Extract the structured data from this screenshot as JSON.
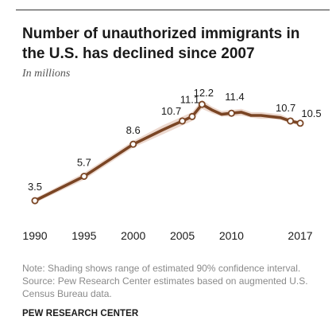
{
  "title": "Number of unauthorized immigrants in the U.S. has declined since 2007",
  "subtitle": "In millions",
  "note": "Note: Shading shows range of estimated 90% confidence interval.",
  "source": "Source: Pew Research Center estimates based on augmented U.S. Census Bureau data.",
  "brand": "PEW RESEARCH CENTER",
  "colors": {
    "line": "#7a4524",
    "band": "#e6cbbd",
    "marker_fill": "#ffffff",
    "text": "#1a1a1a",
    "note_text": "#8a8a8a"
  },
  "chart_data": {
    "type": "line",
    "title": "Number of unauthorized immigrants in the U.S. has declined since 2007",
    "subtitle": "In millions",
    "xlabel": "",
    "ylabel": "",
    "x_ticks": [
      1990,
      1995,
      2000,
      2005,
      2010,
      2017
    ],
    "xlim": [
      1990,
      2017
    ],
    "ylim": [
      2.5,
      13
    ],
    "grid": false,
    "legend": "none",
    "series": [
      {
        "x": [
          1990,
          1995,
          2000,
          2003,
          2004,
          2005,
          2006,
          2007,
          2008,
          2009,
          2010,
          2011,
          2012,
          2013,
          2014,
          2015,
          2016,
          2017
        ],
        "y": [
          3.5,
          5.7,
          8.6,
          9.9,
          10.3,
          10.7,
          11.1,
          12.2,
          11.7,
          11.3,
          11.4,
          11.5,
          11.2,
          11.2,
          11.1,
          11.0,
          10.7,
          10.5
        ],
        "lower": [
          3.3,
          5.4,
          8.3,
          9.5,
          9.9,
          10.3,
          10.7,
          11.8,
          11.4,
          11.1,
          11.1,
          11.2,
          11.0,
          10.9,
          10.9,
          10.8,
          10.5,
          10.3
        ],
        "upper": [
          3.7,
          6.0,
          8.9,
          10.3,
          10.7,
          11.1,
          11.5,
          12.6,
          12.0,
          11.6,
          11.7,
          11.8,
          11.5,
          11.5,
          11.4,
          11.3,
          10.9,
          10.7
        ]
      }
    ],
    "markers": [
      {
        "x": 1990,
        "y": 3.5
      },
      {
        "x": 1995,
        "y": 5.7
      },
      {
        "x": 2000,
        "y": 8.6
      },
      {
        "x": 2005,
        "y": 10.7
      },
      {
        "x": 2006,
        "y": 11.1
      },
      {
        "x": 2007,
        "y": 12.2
      },
      {
        "x": 2010,
        "y": 11.4
      },
      {
        "x": 2016,
        "y": 10.7
      },
      {
        "x": 2017,
        "y": 10.5
      }
    ],
    "data_labels": [
      {
        "x": 1990,
        "y": 3.5,
        "text": "3.5"
      },
      {
        "x": 1995,
        "y": 5.7,
        "text": "5.7"
      },
      {
        "x": 2000,
        "y": 8.6,
        "text": "8.6"
      },
      {
        "x": 2005,
        "y": 10.7,
        "text": "10.7"
      },
      {
        "x": 2006,
        "y": 11.1,
        "text": "11.1"
      },
      {
        "x": 2007,
        "y": 12.2,
        "text": "12.2"
      },
      {
        "x": 2010,
        "y": 11.4,
        "text": "11.4"
      },
      {
        "x": 2016,
        "y": 10.7,
        "text": "10.7"
      },
      {
        "x": 2017,
        "y": 10.5,
        "text": "10.5"
      }
    ]
  }
}
